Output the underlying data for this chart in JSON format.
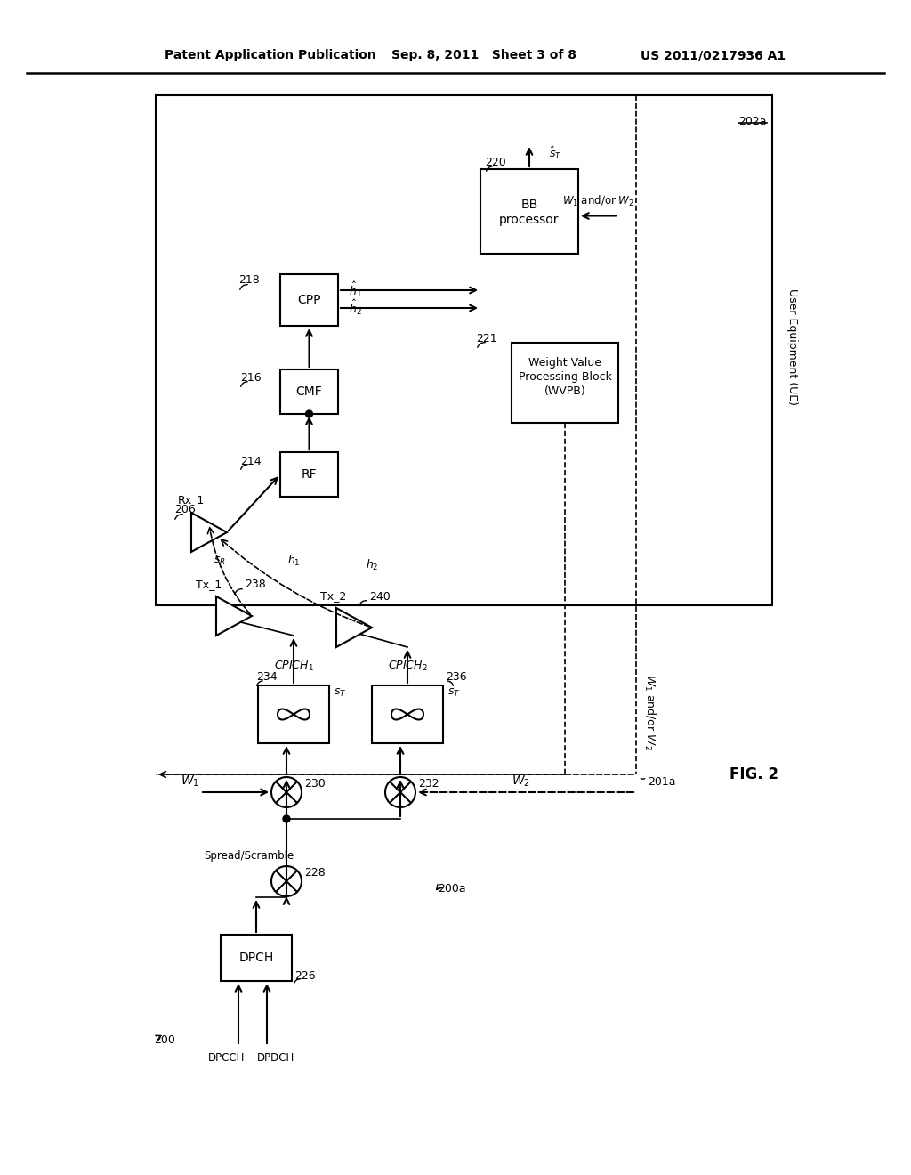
{
  "title_left": "Patent Application Publication",
  "title_center": "Sep. 8, 2011   Sheet 3 of 8",
  "title_right": "US 2011/0217936 A1",
  "fig_label": "FIG. 2",
  "background": "#ffffff"
}
